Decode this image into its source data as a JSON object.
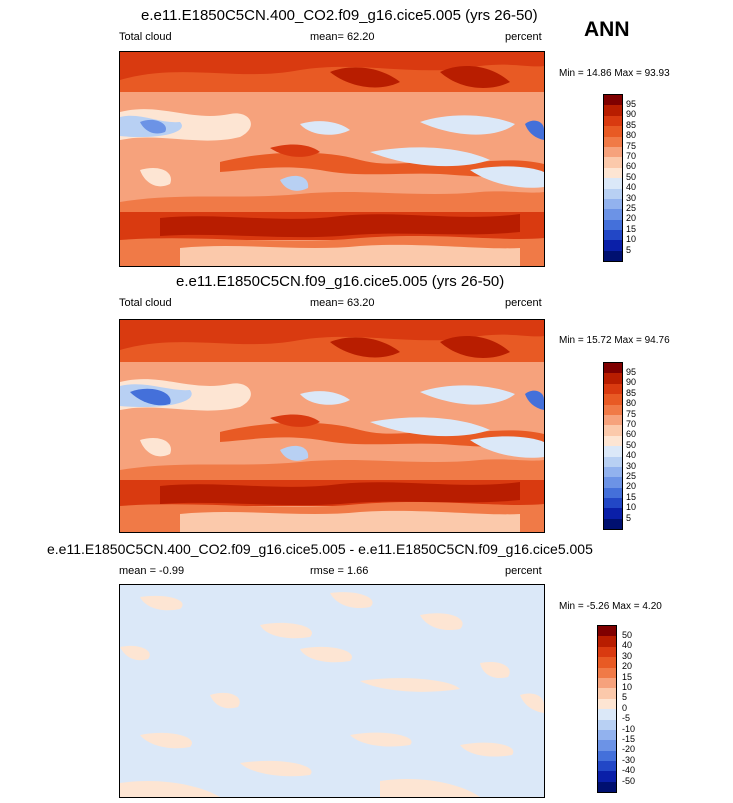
{
  "season": "ANN",
  "panels": [
    {
      "title": "e.e11.E1850C5CN.400_CO2.f09_g16.cice5.005 (yrs 26-50)",
      "left_label": "Total cloud",
      "center_label": "mean=  62.20",
      "right_label": "percent",
      "minmax": "Min =  14.86 Max =  93.93",
      "colorbar_labels": [
        "95",
        "90",
        "85",
        "80",
        "75",
        "70",
        "60",
        "50",
        "40",
        "30",
        "25",
        "20",
        "15",
        "10",
        "5"
      ]
    },
    {
      "title": "e.e11.E1850C5CN.f09_g16.cice5.005 (yrs 26-50)",
      "left_label": "Total cloud",
      "center_label": "mean=  63.20",
      "right_label": "percent",
      "minmax": "Min =  15.72 Max =  94.76",
      "colorbar_labels": [
        "95",
        "90",
        "85",
        "80",
        "75",
        "70",
        "60",
        "50",
        "40",
        "30",
        "25",
        "20",
        "15",
        "10",
        "5"
      ]
    },
    {
      "title": "e.e11.E1850C5CN.400_CO2.f09_g16.cice5.005 - e.e11.E1850C5CN.f09_g16.cice5.005",
      "left_label": "mean =  -0.99",
      "center_label": "rmse =   1.66",
      "right_label": "percent",
      "minmax": "Min =  -5.26 Max =   4.20",
      "colorbar_labels": [
        "50",
        "40",
        "30",
        "20",
        "15",
        "10",
        "5",
        "0",
        "-5",
        "-10",
        "-15",
        "-20",
        "-30",
        "-40",
        "-50"
      ]
    }
  ],
  "colors": {
    "abs_scale": [
      "#7f0000",
      "#b81d00",
      "#d93a10",
      "#e85a24",
      "#f07a47",
      "#f6a27c",
      "#fbc9ab",
      "#fde5d3",
      "#dbe8f8",
      "#b8d0f3",
      "#92b2ee",
      "#6c93e6",
      "#4470da",
      "#2247c6",
      "#0a1fa8",
      "#001070"
    ],
    "diff_scale": [
      "#7f0000",
      "#b81d00",
      "#d93a10",
      "#e85a24",
      "#f07a47",
      "#f6a27c",
      "#fbc9ab",
      "#fde5d3",
      "#dbe8f8",
      "#b8d0f3",
      "#92b2ee",
      "#6c93e6",
      "#4470da",
      "#2247c6",
      "#0a1fa8",
      "#001070"
    ]
  }
}
